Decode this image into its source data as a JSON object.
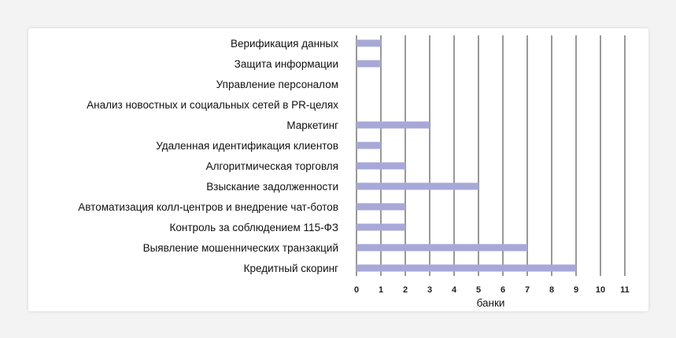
{
  "chart_data": {
    "type": "bar",
    "orientation": "horizontal",
    "categories": [
      "Верификация данных",
      "Защита информации",
      "Управление персоналом",
      "Анализ новостных и социальных сетей в PR-целях",
      "Маркетинг",
      "Удаленная идентификация клиентов",
      "Алгоритмическая торговля",
      "Взыскание задолженности",
      "Автоматизация колл-центров и внедрение чат-ботов",
      "Контроль за соблюдением 115-ФЗ",
      "Выявление мошеннических транзакций",
      "Кредитный скоринг"
    ],
    "values": [
      1,
      1,
      0,
      0,
      3,
      1,
      2,
      5,
      2,
      2,
      7,
      9
    ],
    "xlabel": "банки",
    "ylabel": "",
    "xlim": [
      0,
      11
    ],
    "xticks": [
      0,
      1,
      2,
      3,
      4,
      5,
      6,
      7,
      8,
      9,
      10,
      11
    ],
    "grid": "vertical",
    "bar_color": "#a8a8d8",
    "grid_color": "#333333"
  }
}
